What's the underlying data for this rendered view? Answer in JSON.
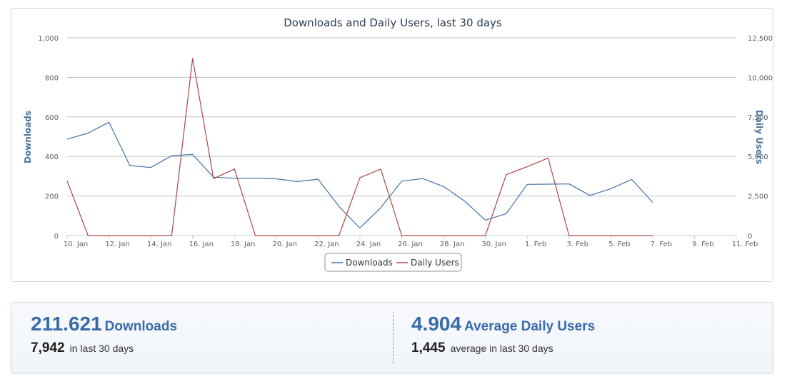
{
  "chart_data": {
    "type": "line",
    "title": "Downloads and Daily Users, last 30 days",
    "y_left_label": "Downloads",
    "y_right_label": "Daily Users",
    "y_left_range": [
      0,
      1000
    ],
    "y_right_range": [
      0,
      12500
    ],
    "y_left_ticks": [
      "0",
      "200",
      "400",
      "600",
      "800",
      "1,000"
    ],
    "y_right_ticks": [
      "0",
      "2,500",
      "5,000",
      "7,500",
      "10,000",
      "12,500"
    ],
    "x_range": [
      "2013-01-10",
      "2013-02-11"
    ],
    "x_ticks": [
      "10. Jan",
      "12. Jan",
      "14. Jan",
      "16. Jan",
      "18. Jan",
      "20. Jan",
      "22. Jan",
      "24. Jan",
      "26. Jan",
      "28. Jan",
      "30. Jan",
      "1. Feb",
      "3. Feb",
      "5. Feb",
      "7. Feb",
      "9. Feb",
      "11. Feb"
    ],
    "grid": true,
    "legend_placement": "bottom-center",
    "x": [
      "2013-01-10",
      "2013-01-11",
      "2013-01-12",
      "2013-01-13",
      "2013-01-14",
      "2013-01-15",
      "2013-01-16",
      "2013-01-17",
      "2013-01-18",
      "2013-01-19",
      "2013-01-20",
      "2013-01-21",
      "2013-01-22",
      "2013-01-23",
      "2013-01-24",
      "2013-01-25",
      "2013-01-26",
      "2013-01-27",
      "2013-01-28",
      "2013-01-29",
      "2013-01-30",
      "2013-01-31",
      "2013-02-01",
      "2013-02-02",
      "2013-02-03",
      "2013-02-04",
      "2013-02-05",
      "2013-02-06",
      "2013-02-07"
    ],
    "series": [
      {
        "name": "Downloads",
        "axis": "left",
        "color": "#4572a7",
        "values": [
          487,
          518,
          573,
          354,
          344,
          404,
          410,
          295,
          290,
          290,
          287,
          273,
          285,
          147,
          38,
          141,
          275,
          288,
          248,
          175,
          78,
          111,
          259,
          260,
          261,
          203,
          237,
          284,
          168
        ]
      },
      {
        "name": "Daily Users",
        "axis": "right",
        "color": "#aa4643",
        "values": [
          3450,
          0,
          0,
          0,
          0,
          0,
          11200,
          3600,
          4200,
          0,
          0,
          0,
          0,
          0,
          3650,
          4200,
          0,
          0,
          0,
          0,
          0,
          3850,
          4350,
          4900,
          0,
          0,
          0,
          0,
          0
        ]
      }
    ]
  },
  "stats": {
    "downloads": {
      "total": "211.621",
      "label": "Downloads",
      "recent": "7,942",
      "recent_label": "in last 30 days"
    },
    "users": {
      "total": "4.904",
      "label": "Average Daily Users",
      "recent": "1,445",
      "recent_label": "average in last 30 days"
    }
  }
}
